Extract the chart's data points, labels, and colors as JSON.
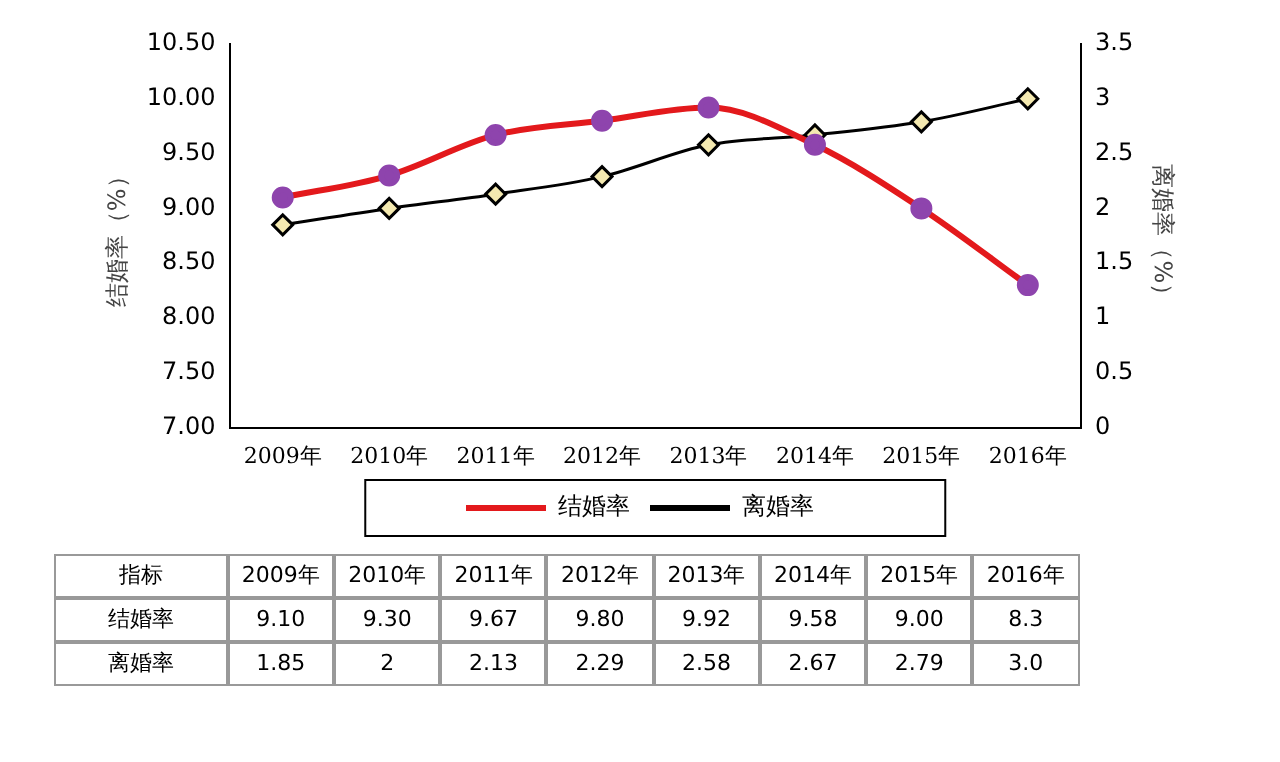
{
  "chart_data": {
    "type": "line",
    "xlabel": null,
    "ylabel": "结婚率（%）",
    "y2label": "离婚率（%）",
    "categories": [
      "2009年",
      "2010年",
      "2011年",
      "2012年",
      "2013年",
      "2014年",
      "2015年",
      "2016年"
    ],
    "series": [
      {
        "name": "结婚率",
        "color": "#e3191c",
        "marker": "circle",
        "values": [
          9.1,
          9.3,
          9.67,
          9.8,
          9.92,
          9.58,
          9.0,
          8.3
        ],
        "value_labels": [
          "9.10",
          "9.30",
          "9.67",
          "9.80",
          "9.92",
          "9.58",
          "9.00",
          "8.3"
        ]
      },
      {
        "name": "离婚率",
        "color": "#000000",
        "marker": "diamond",
        "axis": "y2",
        "values": [
          1.85,
          2,
          2.13,
          2.29,
          2.58,
          2.67,
          2.79,
          3.0
        ],
        "value_labels": [
          "1.85",
          "2",
          "2.13",
          "2.29",
          "2.58",
          "2.67",
          "2.79",
          "3.0"
        ]
      }
    ],
    "ylim": [
      7,
      10.5
    ],
    "yticks": [
      {
        "value": 7,
        "label": "7.00"
      },
      {
        "value": 7.5,
        "label": "7.50"
      },
      {
        "value": 8,
        "label": "8.00"
      },
      {
        "value": 8.5,
        "label": "8.50"
      },
      {
        "value": 9,
        "label": "9.00"
      },
      {
        "value": 9.5,
        "label": "9.50"
      },
      {
        "value": 10,
        "label": "10.00"
      },
      {
        "value": 10.5,
        "label": "10.50"
      }
    ],
    "y2lim": [
      0,
      3.5
    ],
    "y2ticks": [
      0,
      0.5,
      1,
      1.5,
      2,
      2.5,
      3,
      3.5
    ],
    "grid": false,
    "legend": "bottom",
    "line_style": "solid",
    "annotations": [
      "指标"
    ]
  }
}
